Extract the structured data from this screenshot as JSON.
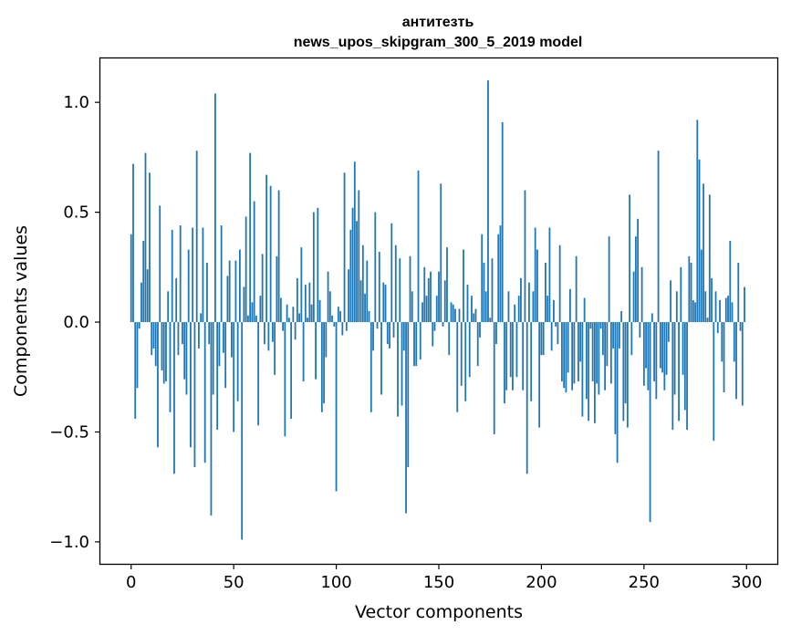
{
  "chart_data": {
    "type": "bar",
    "title_line1": "антитезть",
    "title_line2": "news_upos_skipgram_300_5_2019 model",
    "xlabel": "Vector components",
    "ylabel": "Components values",
    "xlim": [
      -15,
      315
    ],
    "ylim": [
      -1.1,
      1.2
    ],
    "x_ticks": [
      0,
      50,
      100,
      150,
      200,
      250,
      300
    ],
    "x_tick_labels": [
      "0",
      "50",
      "100",
      "150",
      "200",
      "250",
      "300"
    ],
    "y_ticks": [
      -1.0,
      -0.5,
      0.0,
      0.5,
      1.0
    ],
    "y_tick_labels": [
      "−1.0",
      "−0.5",
      "0.0",
      "0.5",
      "1.0"
    ],
    "color": "#1f77b4",
    "values": [
      0.4,
      0.72,
      -0.44,
      -0.3,
      -0.03,
      0.18,
      0.37,
      0.77,
      0.24,
      0.68,
      -0.15,
      -0.12,
      -0.2,
      -0.57,
      0.53,
      -0.22,
      -0.28,
      -0.27,
      0.14,
      -0.41,
      0.42,
      -0.69,
      0.2,
      -0.15,
      0.44,
      -0.1,
      -0.26,
      -0.33,
      0.33,
      -0.57,
      0.43,
      -0.66,
      0.78,
      -0.12,
      0.04,
      0.43,
      -0.64,
      0.27,
      -0.1,
      -0.88,
      -0.33,
      1.04,
      -0.49,
      -0.2,
      0.44,
      -0.14,
      -0.3,
      0.21,
      0.28,
      -0.16,
      -0.5,
      0.28,
      -0.36,
      0.33,
      -0.99,
      0.16,
      0.48,
      0.03,
      0.77,
      0.09,
      0.55,
      0.03,
      -0.47,
      0.12,
      0.31,
      -0.1,
      0.67,
      -0.13,
      0.62,
      -0.09,
      -0.24,
      0.3,
      0.6,
      0.11,
      -0.04,
      -0.52,
      0.08,
      0.02,
      -0.44,
      0.07,
      -0.08,
      0.2,
      0.04,
      0.34,
      -0.27,
      0.17,
      0.02,
      0.18,
      0.08,
      0.5,
      -0.26,
      0.52,
      0.1,
      -0.41,
      -0.37,
      -0.16,
      0.23,
      0.14,
      0.03,
      -0.02,
      -0.77,
      0.07,
      0.05,
      -0.06,
      0.68,
      -0.04,
      0.24,
      0.42,
      0.52,
      0.73,
      0.46,
      0.6,
      0.19,
      0.35,
      0.13,
      0.28,
      0.05,
      -0.41,
      -0.13,
      0.5,
      -0.03,
      0.32,
      -0.33,
      0.18,
      0.17,
      -0.1,
      -0.12,
      0.45,
      -0.07,
      0.35,
      -0.43,
      0.29,
      -0.38,
      -0.13,
      -0.87,
      -0.66,
      0.3,
      0.14,
      -0.2,
      -0.2,
      0.69,
      -0.17,
      0.09,
      0.25,
      0.12,
      0.2,
      0.23,
      -0.11,
      -0.04,
      0.12,
      0.23,
      0.63,
      -0.02,
      0.19,
      0.34,
      -0.15,
      0.09,
      0.08,
      0.06,
      -0.41,
      0.06,
      -0.29,
      0.33,
      -0.36,
      0.17,
      -0.25,
      0.12,
      0.04,
      0.06,
      -0.2,
      -0.07,
      0.4,
      0.27,
      0.14,
      1.1,
      0.02,
      0.29,
      -0.51,
      -0.1,
      0.4,
      0.44,
      0.91,
      -0.37,
      -0.31,
      0.14,
      -0.25,
      -0.31,
      0.08,
      -0.25,
      0.12,
      0.2,
      -0.31,
      0.6,
      -0.69,
      0.18,
      -0.36,
      0.14,
      0.43,
      0.33,
      -0.48,
      -0.15,
      -0.15,
      0.27,
      0.12,
      0.43,
      -0.13,
      0.1,
      -0.02,
      -0.1,
      0.35,
      -0.27,
      -0.3,
      -0.32,
      -0.23,
      0.15,
      -0.31,
      -0.28,
      0.3,
      -0.27,
      -0.18,
      -0.43,
      0.11,
      -0.35,
      -0.45,
      -0.03,
      -0.27,
      -0.46,
      -0.28,
      -0.33,
      -0.03,
      -0.15,
      -0.31,
      -0.2,
      0.39,
      -0.28,
      -0.12,
      -0.51,
      -0.64,
      -0.12,
      0.05,
      -0.45,
      -0.37,
      -0.48,
      0.58,
      -0.15,
      0.23,
      0.39,
      0.47,
      -0.07,
      0.25,
      -0.29,
      -0.21,
      -0.31,
      -0.91,
      0.04,
      -0.27,
      -0.35,
      0.78,
      -0.21,
      -0.23,
      -0.31,
      -0.24,
      -0.09,
      0.19,
      -0.49,
      -0.33,
      0.14,
      -0.45,
      0.25,
      -0.24,
      -0.4,
      -0.49,
      0.3,
      0.27,
      0.1,
      0.09,
      0.92,
      0.74,
      0.33,
      0.63,
      0.14,
      0.02,
      0.58,
      0.2,
      -0.54,
      0.14,
      -0.05,
      0.1,
      -0.18,
      -0.32,
      0.11,
      0.12,
      0.37,
      0.09,
      -0.18,
      -0.35,
      0.27,
      -0.04,
      -0.38,
      0.16
    ]
  }
}
